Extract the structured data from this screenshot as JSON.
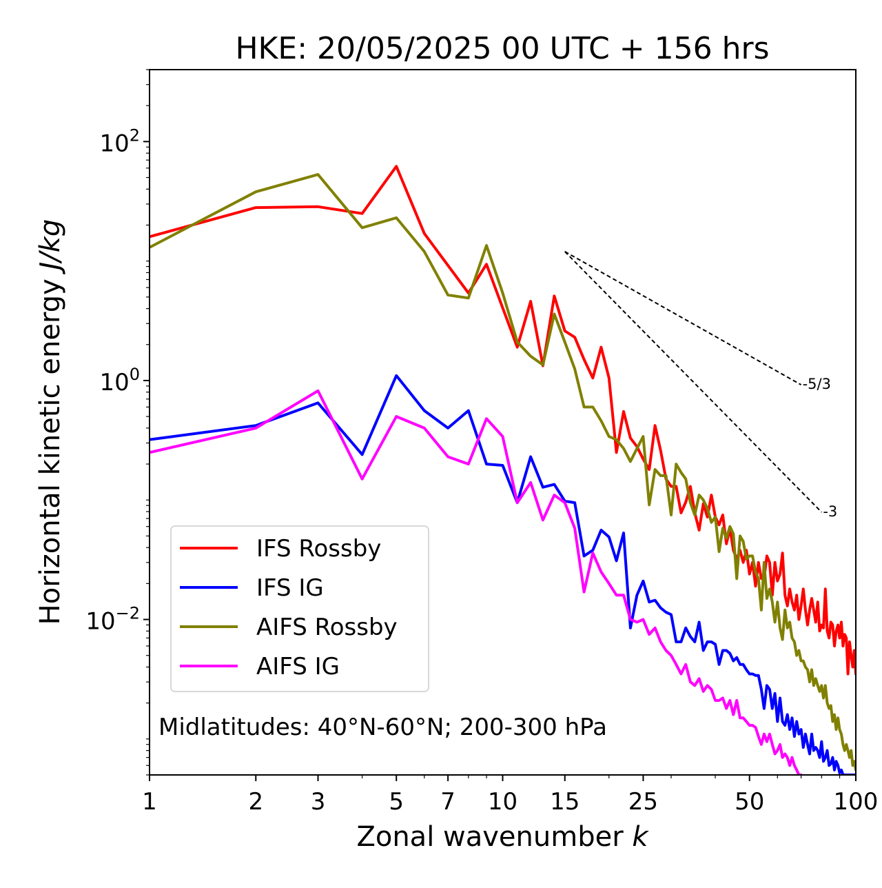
{
  "chart_data": {
    "type": "line",
    "title": "HKE: 20/05/2025 00 UTC + 156 hrs",
    "xlabel_text": "Zonal wavenumber ",
    "xlabel_italic": "k",
    "ylabel_text": "Horizontal kinetic energy ",
    "ylabel_italic": "J/kg",
    "x_scale": "log",
    "y_scale": "log",
    "xlim": [
      1,
      100
    ],
    "ylim": [
      0.0005,
      400
    ],
    "x_ticks": [
      1,
      2,
      3,
      5,
      7,
      10,
      15,
      25,
      50,
      100
    ],
    "x_tick_labels": [
      "1",
      "2",
      "3",
      "5",
      "7",
      "10",
      "15",
      "25",
      "50",
      "100"
    ],
    "y_ticks": [
      {
        "value": 100,
        "base": "10",
        "exp": "2"
      },
      {
        "value": 1,
        "base": "10",
        "exp": "0"
      },
      {
        "value": 0.01,
        "base": "10",
        "exp": "−2"
      }
    ],
    "grid": false,
    "legend_position": "lower-left",
    "annotation": "Midlatitudes: 40°N-60°N; 200-300 hPa",
    "reference_slopes": [
      {
        "label": "-5/3",
        "slope": -1.6667,
        "x_start": 15,
        "x_end": 70,
        "y_start": 12
      },
      {
        "label": "-3",
        "slope": -3,
        "x_start": 15,
        "x_end": 80,
        "y_start": 12
      }
    ],
    "series": [
      {
        "name": "IFS Rossby",
        "color": "#ff0000",
        "x": [
          1,
          2,
          3,
          4,
          5,
          6,
          8,
          9,
          11,
          12,
          13,
          14,
          15,
          16,
          17,
          18,
          19,
          20,
          21,
          22,
          23,
          24,
          25,
          26,
          27,
          28,
          29,
          30,
          31,
          32,
          33,
          34,
          35,
          36,
          37,
          38,
          39,
          40,
          41,
          42,
          43,
          44,
          45,
          46,
          47,
          48,
          49,
          50,
          51,
          52,
          53,
          54,
          55,
          56,
          57,
          58,
          59,
          60,
          61,
          62,
          63,
          64,
          65,
          66,
          67,
          68,
          69,
          70,
          71,
          72,
          73,
          74,
          75,
          76,
          77,
          78,
          79,
          80,
          81,
          82,
          83,
          84,
          85,
          86,
          87,
          88,
          89,
          90,
          91,
          92,
          93,
          94,
          95,
          96,
          97,
          98,
          99,
          100
        ],
        "y": [
          16,
          28,
          28.5,
          25,
          62,
          17,
          5.4,
          9.4,
          1.9,
          4.6,
          1.33,
          5.1,
          2.6,
          2.3,
          1.5,
          1.05,
          1.9,
          1.05,
          0.25,
          0.55,
          0.33,
          0.28,
          0.22,
          0.18,
          0.42,
          0.26,
          0.15,
          0.13,
          0.13,
          0.078,
          0.096,
          0.13,
          0.078,
          0.056,
          0.093,
          0.072,
          0.11,
          0.072,
          0.062,
          0.075,
          0.043,
          0.058,
          0.038,
          0.032,
          0.038,
          0.03,
          0.038,
          0.024,
          0.03,
          0.019,
          0.03,
          0.022,
          0.022,
          0.034,
          0.03,
          0.016,
          0.03,
          0.021,
          0.024,
          0.036,
          0.016,
          0.013,
          0.018,
          0.014,
          0.012,
          0.016,
          0.01,
          0.013,
          0.018,
          0.012,
          0.009,
          0.012,
          0.015,
          0.012,
          0.0095,
          0.014,
          0.008,
          0.009,
          0.0085,
          0.018,
          0.008,
          0.007,
          0.0095,
          0.009,
          0.006,
          0.008,
          0.009,
          0.007,
          0.0095,
          0.006,
          0.0075,
          0.007,
          0.0035,
          0.0065,
          0.005,
          0.004,
          0.0055,
          0.0035
        ]
      },
      {
        "name": "IFS IG",
        "color": "#0000ff",
        "x": [
          1,
          2,
          3,
          4,
          5,
          6,
          7,
          8,
          9,
          10,
          11,
          12,
          13,
          14,
          15,
          16,
          17,
          18,
          19,
          20,
          21,
          22,
          23,
          24,
          25,
          26,
          27,
          28,
          29,
          30,
          31,
          32,
          33,
          34,
          35,
          36,
          37,
          38,
          39,
          40,
          41,
          42,
          43,
          44,
          45,
          46,
          47,
          48,
          49,
          50,
          51,
          52,
          53,
          54,
          55,
          56,
          57,
          58,
          59,
          60,
          61,
          62,
          63,
          64,
          65,
          66,
          67,
          68,
          69,
          70,
          71,
          72,
          73,
          74,
          75,
          76,
          77,
          78,
          79,
          80,
          81,
          82,
          83,
          84,
          85,
          86,
          87,
          88,
          89,
          90,
          91,
          92,
          93,
          94,
          95,
          96,
          97,
          98,
          99,
          100
        ],
        "y": [
          0.32,
          0.42,
          0.65,
          0.24,
          1.1,
          0.56,
          0.4,
          0.56,
          0.2,
          0.195,
          0.095,
          0.23,
          0.128,
          0.135,
          0.098,
          0.095,
          0.034,
          0.038,
          0.056,
          0.049,
          0.031,
          0.053,
          0.0085,
          0.016,
          0.021,
          0.014,
          0.0145,
          0.0125,
          0.0115,
          0.011,
          0.0065,
          0.0065,
          0.0085,
          0.0072,
          0.0065,
          0.0095,
          0.0055,
          0.0065,
          0.0065,
          0.0062,
          0.0042,
          0.0055,
          0.0055,
          0.0052,
          0.0045,
          0.0048,
          0.0042,
          0.0042,
          0.0038,
          0.0035,
          0.0035,
          0.0034,
          0.0034,
          0.0026,
          0.0018,
          0.0028,
          0.0026,
          0.0018,
          0.0024,
          0.0014,
          0.0022,
          0.0014,
          0.0013,
          0.0016,
          0.0012,
          0.0015,
          0.00105,
          0.0014,
          0.0011,
          0.0012,
          0.00085,
          0.0011,
          0.0009,
          0.00075,
          0.0011,
          0.0008,
          0.00085,
          0.0008,
          0.0007,
          0.00095,
          0.00065,
          0.0007,
          0.0008,
          0.0006,
          0.00062,
          0.0007,
          0.00055,
          0.00065,
          0.0006,
          0.00052,
          0.00055,
          0.0005,
          0.0005,
          0.0005,
          0.0005,
          0.0005,
          0.0005,
          0.0005,
          0.0005,
          0.0005
        ]
      },
      {
        "name": "AIFS Rossby",
        "color": "#808000",
        "x": [
          1,
          2,
          3,
          4,
          5,
          6,
          7,
          8,
          9,
          10,
          11,
          12,
          13,
          14,
          15,
          16,
          17,
          18,
          19,
          20,
          21,
          22,
          23,
          24,
          25,
          26,
          27,
          28,
          29,
          30,
          31,
          32,
          33,
          34,
          35,
          36,
          37,
          38,
          39,
          40,
          41,
          42,
          43,
          44,
          45,
          46,
          47,
          48,
          49,
          50,
          51,
          52,
          53,
          54,
          55,
          56,
          57,
          58,
          59,
          60,
          61,
          62,
          63,
          64,
          65,
          66,
          67,
          68,
          69,
          70,
          71,
          72,
          73,
          74,
          75,
          76,
          77,
          78,
          79,
          80,
          81,
          82,
          83,
          84,
          85,
          86,
          87,
          88,
          89,
          90,
          91,
          92,
          93,
          94,
          95,
          96,
          97,
          98,
          99,
          100
        ],
        "y": [
          13,
          38,
          53,
          19,
          23,
          12,
          5.2,
          4.9,
          13.5,
          5.4,
          2.1,
          1.6,
          1.35,
          3.6,
          2.1,
          1.25,
          0.6,
          0.6,
          0.46,
          0.34,
          0.32,
          0.27,
          0.21,
          0.27,
          0.34,
          0.091,
          0.18,
          0.16,
          0.16,
          0.075,
          0.2,
          0.17,
          0.15,
          0.095,
          0.075,
          0.11,
          0.1,
          0.085,
          0.065,
          0.072,
          0.037,
          0.058,
          0.048,
          0.06,
          0.052,
          0.022,
          0.05,
          0.045,
          0.032,
          0.034,
          0.034,
          0.025,
          0.022,
          0.012,
          0.03,
          0.015,
          0.018,
          0.014,
          0.0095,
          0.014,
          0.0085,
          0.0068,
          0.012,
          0.0085,
          0.0095,
          0.007,
          0.0065,
          0.005,
          0.0055,
          0.0045,
          0.0045,
          0.004,
          0.0038,
          0.003,
          0.0038,
          0.0028,
          0.0032,
          0.0028,
          0.0025,
          0.0028,
          0.0022,
          0.0028,
          0.002,
          0.0018,
          0.0019,
          0.0014,
          0.0016,
          0.0012,
          0.0015,
          0.0012,
          0.0011,
          0.0009,
          0.0008,
          0.0009,
          0.0008,
          0.0007,
          0.0008,
          0.0006,
          0.00065,
          0.00055
        ]
      },
      {
        "name": "AIFS IG",
        "color": "#ff00ff",
        "x": [
          1,
          2,
          3,
          4,
          5,
          6,
          7,
          8,
          9,
          10,
          11,
          12,
          13,
          14,
          15,
          16,
          17,
          18,
          19,
          20,
          21,
          22,
          23,
          24,
          25,
          26,
          27,
          28,
          29,
          30,
          31,
          32,
          33,
          34,
          35,
          36,
          37,
          38,
          39,
          40,
          41,
          42,
          43,
          44,
          45,
          46,
          47,
          48,
          49,
          50,
          51,
          52,
          53,
          54,
          55,
          56,
          57,
          58,
          59,
          60,
          61,
          62,
          63,
          64,
          65,
          66,
          67,
          68,
          69,
          70
        ],
        "y": [
          0.25,
          0.4,
          0.82,
          0.15,
          0.5,
          0.4,
          0.23,
          0.2,
          0.48,
          0.34,
          0.095,
          0.14,
          0.068,
          0.11,
          0.095,
          0.058,
          0.017,
          0.036,
          0.025,
          0.02,
          0.016,
          0.016,
          0.01,
          0.0095,
          0.01,
          0.0075,
          0.0085,
          0.0065,
          0.0055,
          0.005,
          0.0042,
          0.0035,
          0.0042,
          0.003,
          0.0028,
          0.0032,
          0.0025,
          0.0028,
          0.0026,
          0.0021,
          0.0021,
          0.0022,
          0.0018,
          0.0021,
          0.0016,
          0.0021,
          0.0015,
          0.0015,
          0.0014,
          0.0013,
          0.0013,
          0.00125,
          0.00105,
          0.0009,
          0.0011,
          0.00095,
          0.0011,
          0.0009,
          0.00075,
          0.0008,
          0.0009,
          0.0007,
          0.00075,
          0.0007,
          0.0006,
          0.0007,
          0.0006,
          0.00055,
          0.0005,
          0.0005
        ]
      }
    ]
  }
}
